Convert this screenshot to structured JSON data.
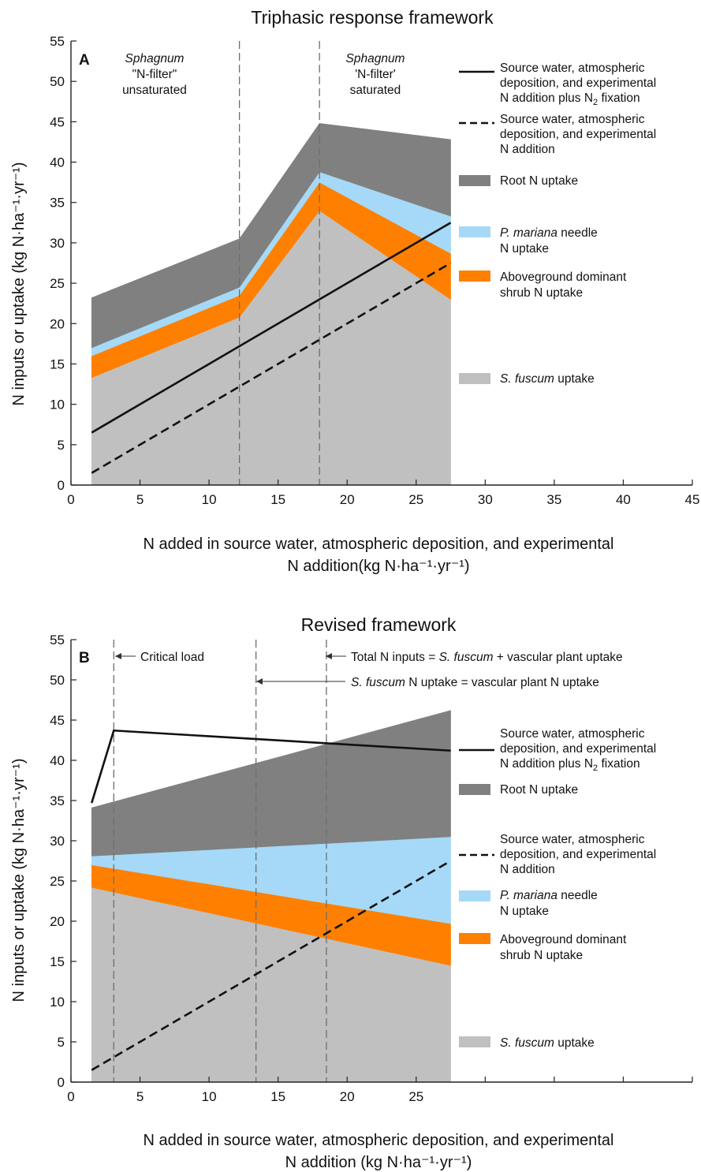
{
  "chart_data": [
    {
      "panel": "A",
      "type": "area",
      "title": "Triphasic response framework",
      "xlabel_line1": "N added in source water, atmospheric deposition, and experimental",
      "xlabel_line2": "N addition(kg N·ha⁻¹·yr⁻¹)",
      "ylabel": "N inputs or uptake (kg N·ha⁻¹·yr⁻¹)",
      "xlim": [
        0,
        45
      ],
      "ylim": [
        0,
        55
      ],
      "xticks": [
        0,
        5,
        10,
        15,
        20,
        25,
        30,
        35,
        40,
        45
      ],
      "yticks": [
        0,
        5,
        10,
        15,
        20,
        25,
        30,
        35,
        40,
        45,
        50,
        55
      ],
      "grid": false,
      "legend_position": "right",
      "x": [
        1.5,
        12.2,
        18,
        27.5
      ],
      "stacked_series": [
        {
          "name": "S. fuscum uptake",
          "color": "#c0c0c0",
          "lower": [
            0,
            0,
            0,
            0
          ],
          "upper": [
            13.3,
            20.8,
            34,
            23
          ]
        },
        {
          "name": "Aboveground dominant shrub N uptake",
          "color": "#ff8000",
          "lower": [
            13.3,
            20.8,
            34,
            23
          ],
          "upper": [
            16,
            23.5,
            37.5,
            28.7
          ]
        },
        {
          "name": "P. mariana needle N uptake",
          "color": "#a5d9f7",
          "lower": [
            16,
            23.5,
            37.5,
            28.7
          ],
          "upper": [
            17,
            24.5,
            38.8,
            33.3
          ]
        },
        {
          "name": "Root N uptake",
          "color": "#808080",
          "lower": [
            17,
            24.5,
            38.8,
            33.3
          ],
          "upper": [
            23.2,
            30.5,
            44.8,
            42.8
          ]
        }
      ],
      "lines": [
        {
          "name": "Source water, atmospheric deposition, and experimental N addition plus N2 fixation",
          "style": "solid",
          "x": [
            1.5,
            27.5
          ],
          "y": [
            6.5,
            32.5
          ]
        },
        {
          "name": "Source water, atmospheric deposition, and experimental N addition",
          "style": "dashed",
          "x": [
            1.5,
            27.5
          ],
          "y": [
            1.5,
            27.5
          ]
        }
      ],
      "vlines": [
        12.2,
        18
      ],
      "annotations": [
        {
          "line1": "Sphagnum",
          "line2": "\"N-filter\"",
          "line3": "unsaturated"
        },
        {
          "line1": "Sphagnum",
          "line2": "'N-filter'",
          "line3": "saturated"
        }
      ],
      "legend": [
        {
          "kind": "solid",
          "lines": [
            "Source water, atmospheric",
            "deposition, and experimental",
            "N addition plus N",
            "2",
            " fixation"
          ]
        },
        {
          "kind": "dashed",
          "lines": [
            "Source water, atmospheric",
            "deposition, and experimental",
            "N addition"
          ]
        },
        {
          "kind": "patch",
          "color": "#808080",
          "lines": [
            "Root N uptake"
          ]
        },
        {
          "kind": "patch",
          "color": "#a5d9f7",
          "lines": [
            "P. mariana",
            " needle",
            "N uptake"
          ]
        },
        {
          "kind": "patch",
          "color": "#ff8000",
          "lines": [
            "Aboveground dominant",
            "shrub N uptake"
          ]
        },
        {
          "kind": "patch",
          "color": "#c0c0c0",
          "lines": [
            "S. fuscum",
            " uptake"
          ]
        }
      ]
    },
    {
      "panel": "B",
      "type": "area",
      "title": "Revised framework",
      "xlabel_line1": "N added in source water, atmospheric deposition, and experimental",
      "xlabel_line2": "N addition (kg N·ha⁻¹·yr⁻¹)",
      "ylabel": "N inputs or uptake (kg N·ha⁻¹·yr⁻¹)",
      "xlim": [
        0,
        45
      ],
      "ylim": [
        0,
        55
      ],
      "xticks": [
        0,
        5,
        10,
        15,
        20,
        25
      ],
      "yticks": [
        0,
        5,
        10,
        15,
        20,
        25,
        30,
        35,
        40,
        45,
        50,
        55
      ],
      "grid": false,
      "legend_position": "right",
      "x": [
        1.5,
        27.5
      ],
      "stacked_series": [
        {
          "name": "S. fuscum uptake",
          "color": "#c0c0c0",
          "lower": [
            0,
            0
          ],
          "upper": [
            24.2,
            14.5
          ]
        },
        {
          "name": "Aboveground dominant shrub N uptake",
          "color": "#ff8000",
          "lower": [
            24.2,
            14.5
          ],
          "upper": [
            27,
            19.7
          ]
        },
        {
          "name": "P. mariana needle N uptake",
          "color": "#a5d9f7",
          "lower": [
            27,
            19.7
          ],
          "upper": [
            28.1,
            30.5
          ]
        },
        {
          "name": "Root N uptake",
          "color": "#808080",
          "lower": [
            28.1,
            30.5
          ],
          "upper": [
            34.1,
            46.2
          ]
        }
      ],
      "lines": [
        {
          "name": "Source water, atmospheric deposition, and experimental N addition plus N2 fixation",
          "style": "solid",
          "x": [
            1.5,
            3.1,
            27.5
          ],
          "y": [
            34.7,
            43.7,
            41.2
          ]
        },
        {
          "name": "Source water, atmospheric deposition, and experimental N addition",
          "style": "dashed",
          "x": [
            1.5,
            27.5
          ],
          "y": [
            1.5,
            27.5
          ]
        }
      ],
      "vlines": [
        3.1,
        13.4,
        18.5
      ],
      "annotations": [
        {
          "text": "Critical load"
        },
        {
          "text_a": "Total N inputs = ",
          "text_b": "S. fuscum",
          "text_c": " + vascular plant uptake"
        },
        {
          "text_a": "S. fuscum",
          "text_b": " N uptake = vascular plant N uptake"
        }
      ],
      "legend": [
        {
          "kind": "solid",
          "lines": [
            "Source water, atmospheric",
            "deposition, and experimental",
            "N addition plus N",
            "2",
            " fixation"
          ]
        },
        {
          "kind": "patch",
          "color": "#808080",
          "lines": [
            "Root N uptake"
          ]
        },
        {
          "kind": "dashed",
          "lines": [
            "Source water, atmospheric",
            "deposition, and experimental",
            "N addition"
          ]
        },
        {
          "kind": "patch",
          "color": "#a5d9f7",
          "lines": [
            "P. mariana",
            " needle",
            "N uptake"
          ]
        },
        {
          "kind": "patch",
          "color": "#ff8000",
          "lines": [
            "Aboveground dominant",
            "shrub N uptake"
          ]
        },
        {
          "kind": "patch",
          "color": "#c0c0c0",
          "lines": [
            "S. fuscum",
            " uptake"
          ]
        }
      ]
    }
  ]
}
